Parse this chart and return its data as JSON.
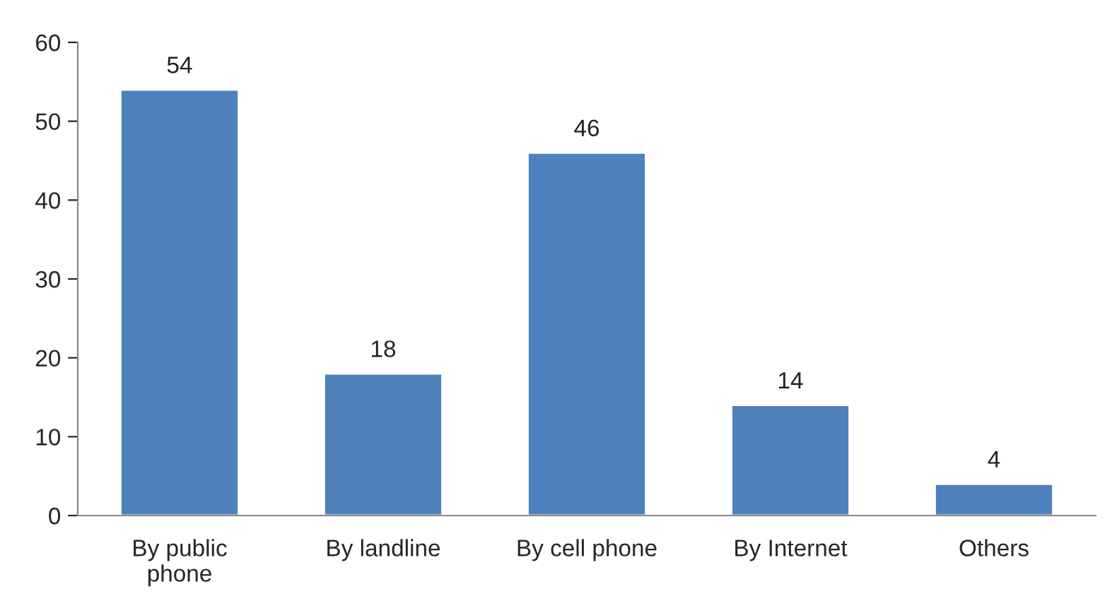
{
  "chart_data": {
    "type": "bar",
    "categories": [
      "By public\nphone",
      "By landline",
      "By cell phone",
      "By Internet",
      "Others"
    ],
    "values": [
      54,
      18,
      46,
      14,
      4
    ],
    "color": "#4f81bd",
    "ylim": [
      0,
      60
    ],
    "yticks": [
      0,
      10,
      20,
      30,
      40,
      50,
      60
    ],
    "data_labels": true,
    "grid": false,
    "legend": false
  }
}
